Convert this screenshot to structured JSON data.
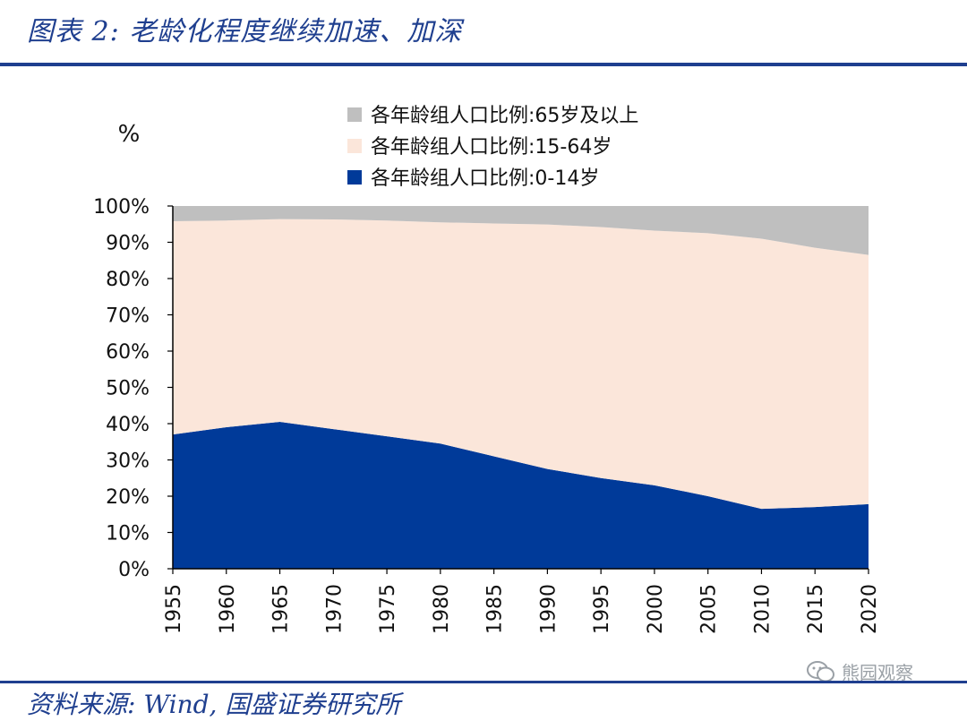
{
  "header": {
    "title": "图表 2:  老龄化程度继续加速、加深"
  },
  "footer": {
    "source": "资料来源:  Wind, 国盛证券研究所"
  },
  "watermark": {
    "text": "熊园观察",
    "icon": "wechat-icon"
  },
  "colors": {
    "age_0_14": "#003a99",
    "age_15_64": "#fbe6da",
    "age_65_plus": "#bfbfbf",
    "brand": "#1f3f8f"
  },
  "chart_data": {
    "type": "area",
    "stacked": true,
    "unit_label": "%",
    "x": [
      1955,
      1960,
      1965,
      1970,
      1975,
      1980,
      1985,
      1990,
      1995,
      2000,
      2005,
      2010,
      2015,
      2020
    ],
    "series": [
      {
        "name": "各年龄组人口比例:0-14岁",
        "values": [
          37.0,
          39.0,
          40.5,
          38.5,
          36.5,
          34.5,
          31.0,
          27.5,
          25.0,
          23.0,
          20.0,
          16.5,
          17.0,
          17.8
        ]
      },
      {
        "name": "各年龄组人口比例:15-64岁",
        "values": [
          58.8,
          57.0,
          55.9,
          57.8,
          59.5,
          61.0,
          64.2,
          67.4,
          69.2,
          70.2,
          72.5,
          74.5,
          71.5,
          68.7
        ]
      },
      {
        "name": "各年龄组人口比例:65岁及以上",
        "values": [
          4.2,
          4.0,
          3.6,
          3.7,
          4.0,
          4.5,
          4.8,
          5.1,
          5.8,
          6.8,
          7.5,
          9.0,
          11.5,
          13.5
        ]
      }
    ],
    "ylim": [
      0,
      100
    ],
    "yticks": [
      "0%",
      "10%",
      "20%",
      "30%",
      "40%",
      "50%",
      "60%",
      "70%",
      "80%",
      "90%",
      "100%"
    ],
    "xticks": [
      "1955",
      "1960",
      "1965",
      "1970",
      "1975",
      "1980",
      "1985",
      "1990",
      "1995",
      "2000",
      "2005",
      "2010",
      "2015",
      "2020"
    ],
    "legend_order": [
      2,
      1,
      0
    ],
    "legend_position": "top-center",
    "grid": false
  }
}
